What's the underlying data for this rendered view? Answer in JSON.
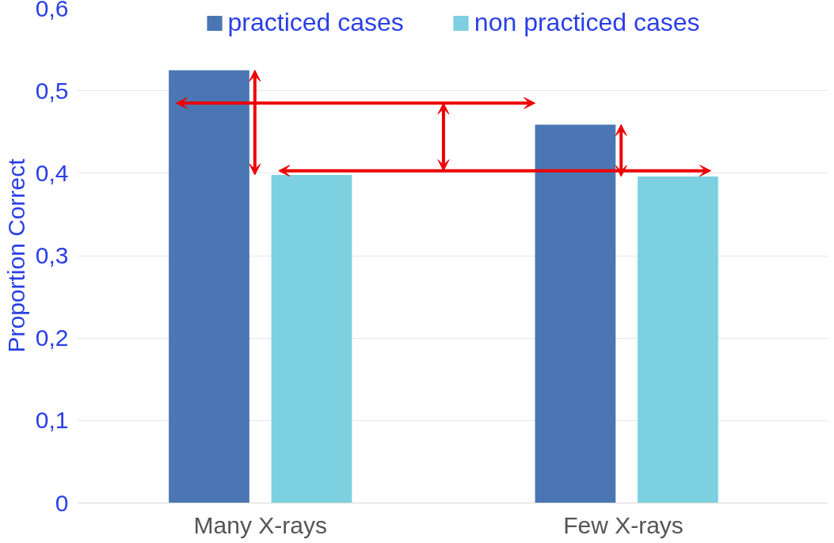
{
  "chart_data": {
    "type": "bar",
    "ylabel": "Proportion Correct",
    "categories": [
      "Many X-rays",
      "Few  X-rays"
    ],
    "series": [
      {
        "name": "practiced cases",
        "color": "#4a77b4",
        "values": [
          0.525,
          0.459
        ]
      },
      {
        "name": "non practiced cases",
        "color": "#7dd0e0",
        "values": [
          0.398,
          0.396
        ]
      }
    ],
    "ylim": [
      0,
      0.6
    ],
    "yticks": [
      {
        "value": 0,
        "label": "0"
      },
      {
        "value": 0.1,
        "label": "0,1"
      },
      {
        "value": 0.2,
        "label": "0,2"
      },
      {
        "value": 0.3,
        "label": "0,3"
      },
      {
        "value": 0.4,
        "label": "0,4"
      },
      {
        "value": 0.5,
        "label": "0,5"
      },
      {
        "value": 0.6,
        "label": "0,6"
      }
    ],
    "grid": "y",
    "legend": "top"
  }
}
